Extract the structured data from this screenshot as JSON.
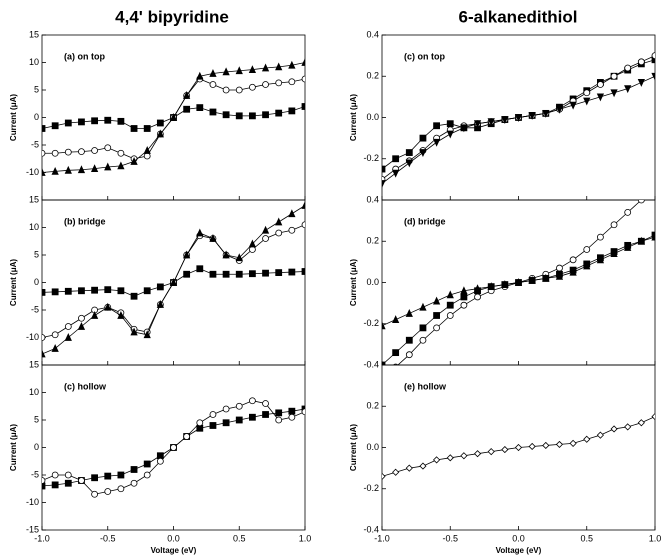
{
  "columns": [
    "4,4' bipyridine",
    "6-alkanedithiol"
  ],
  "chart_data": [
    {
      "type": "line",
      "title": "(a)  on top",
      "ylabel": "Current (μA)",
      "x": [
        -1.0,
        -0.9,
        -0.8,
        -0.7,
        -0.6,
        -0.5,
        -0.4,
        -0.3,
        -0.2,
        -0.1,
        0,
        0.1,
        0.2,
        0.3,
        0.4,
        0.5,
        0.6,
        0.7,
        0.8,
        0.9,
        1.0
      ],
      "xlim": [
        -1,
        1
      ],
      "xticks": [
        -1,
        -0.5,
        0,
        0.5,
        1
      ],
      "ylim": [
        -15,
        15
      ],
      "yticks": [
        15,
        10,
        5,
        0,
        -5,
        -10
      ],
      "series": [
        {
          "color": "#000000",
          "marker": "square",
          "values": [
            -2,
            -1.5,
            -1,
            -0.8,
            -0.6,
            -0.5,
            -0.7,
            -2,
            -2,
            -1,
            0,
            1.5,
            1.8,
            1,
            0.5,
            0.3,
            0.3,
            0.5,
            0.8,
            1.2,
            2
          ]
        },
        {
          "color": "#000000",
          "marker": "circle-open",
          "values": [
            -6.5,
            -6.5,
            -6.3,
            -6.2,
            -6,
            -5.5,
            -6.5,
            -7.5,
            -7,
            -3,
            0,
            4,
            7,
            6,
            5,
            5,
            5.5,
            6,
            6.3,
            6.5,
            7
          ]
        },
        {
          "color": "#000000",
          "marker": "triangle",
          "values": [
            -10,
            -9.8,
            -9.6,
            -9.5,
            -9.3,
            -9,
            -8.8,
            -8,
            -6,
            -3,
            0,
            4,
            7.5,
            8,
            8.3,
            8.5,
            8.7,
            9,
            9.2,
            9.5,
            10
          ]
        }
      ]
    },
    {
      "type": "line",
      "title": "(b)  bridge",
      "ylabel": "Current (μA)",
      "x": [
        -1.0,
        -0.9,
        -0.8,
        -0.7,
        -0.6,
        -0.5,
        -0.4,
        -0.3,
        -0.2,
        -0.1,
        0,
        0.1,
        0.2,
        0.3,
        0.4,
        0.5,
        0.6,
        0.7,
        0.8,
        0.9,
        1.0
      ],
      "xlim": [
        -1,
        1
      ],
      "xticks": [
        -1,
        -0.5,
        0,
        0.5,
        1
      ],
      "ylim": [
        -15,
        15
      ],
      "yticks": [
        15,
        10,
        5,
        0,
        -5,
        -10
      ],
      "series": [
        {
          "color": "#000000",
          "marker": "square",
          "values": [
            -1.8,
            -1.7,
            -1.6,
            -1.5,
            -1.4,
            -1.3,
            -1.5,
            -2.5,
            -1.5,
            -0.8,
            0,
            1.5,
            2.5,
            1.5,
            1.5,
            1.5,
            1.6,
            1.7,
            1.8,
            1.9,
            2
          ]
        },
        {
          "color": "#000000",
          "marker": "circle-open",
          "values": [
            -10,
            -9.5,
            -8,
            -6.5,
            -5,
            -4.5,
            -5.5,
            -8.5,
            -9,
            -4,
            0,
            5,
            8.5,
            8,
            5,
            4,
            6,
            8,
            9,
            9.5,
            10.5
          ]
        },
        {
          "color": "#000000",
          "marker": "triangle",
          "values": [
            -13,
            -12,
            -10,
            -8,
            -6,
            -4.5,
            -6,
            -9,
            -9.5,
            -4,
            0,
            5,
            9,
            8,
            5,
            4.5,
            7,
            9.5,
            11,
            12.5,
            14
          ]
        }
      ]
    },
    {
      "type": "line",
      "title": "(c)  hollow",
      "ylabel": "Current (μA)",
      "xlabel": "Voltage (eV)",
      "x": [
        -1.0,
        -0.9,
        -0.8,
        -0.7,
        -0.6,
        -0.5,
        -0.4,
        -0.3,
        -0.2,
        -0.1,
        0,
        0.1,
        0.2,
        0.3,
        0.4,
        0.5,
        0.6,
        0.7,
        0.8,
        0.9,
        1.0
      ],
      "xlim": [
        -1,
        1
      ],
      "xticks": [
        {
          "value": -1,
          "label": "-1.0"
        },
        -0.5,
        {
          "value": 0,
          "label": "0.0"
        },
        0.5,
        {
          "value": 1,
          "label": "1.0"
        }
      ],
      "ylim": [
        -15,
        15
      ],
      "yticks": [
        15,
        10,
        5,
        0,
        -5,
        -10,
        -15
      ],
      "series": [
        {
          "color": "#000000",
          "marker": "square",
          "values": [
            -7,
            -6.8,
            -6.5,
            -6,
            -5.5,
            -5.2,
            -5,
            -4,
            -3,
            -1.5,
            0,
            2,
            3.5,
            4,
            4.5,
            5,
            5.5,
            6,
            6.3,
            6.6,
            7
          ]
        },
        {
          "color": "#000000",
          "marker": "circle-open",
          "values": [
            -6,
            -5,
            -5,
            -6,
            -8.5,
            -8,
            -7.5,
            -6.5,
            -5,
            -2.5,
            0,
            2,
            4.5,
            6,
            7,
            7.5,
            8.5,
            8,
            5,
            5.5,
            6.5
          ]
        }
      ]
    },
    {
      "type": "line",
      "title": "(c)  on top",
      "ylabel": "Current (μA)",
      "x": [
        -1.0,
        -0.9,
        -0.8,
        -0.7,
        -0.6,
        -0.5,
        -0.4,
        -0.3,
        -0.2,
        -0.1,
        0,
        0.1,
        0.2,
        0.3,
        0.4,
        0.5,
        0.6,
        0.7,
        0.8,
        0.9,
        1.0
      ],
      "xlim": [
        -1,
        1
      ],
      "xticks": [
        -1,
        -0.5,
        0,
        0.5,
        1
      ],
      "ylim": [
        -0.4,
        0.4
      ],
      "yticks": [
        0.4,
        0.2,
        {
          "value": 0,
          "label": "0.0"
        },
        -0.2
      ],
      "series": [
        {
          "color": "#000000",
          "marker": "square",
          "values": [
            -0.25,
            -0.2,
            -0.17,
            -0.1,
            -0.04,
            -0.03,
            -0.05,
            -0.05,
            -0.03,
            -0.01,
            0,
            0.01,
            0.02,
            0.05,
            0.09,
            0.13,
            0.17,
            0.2,
            0.23,
            0.26,
            0.28
          ]
        },
        {
          "color": "#000000",
          "marker": "circle-open",
          "values": [
            -0.3,
            -0.25,
            -0.21,
            -0.16,
            -0.1,
            -0.06,
            -0.04,
            -0.03,
            -0.02,
            -0.01,
            0,
            0.01,
            0.02,
            0.04,
            0.08,
            0.12,
            0.16,
            0.2,
            0.24,
            0.27,
            0.3
          ]
        },
        {
          "color": "#000000",
          "marker": "triangle-down",
          "values": [
            -0.32,
            -0.27,
            -0.22,
            -0.17,
            -0.12,
            -0.08,
            -0.05,
            -0.03,
            -0.02,
            -0.01,
            0,
            0.01,
            0.02,
            0.04,
            0.06,
            0.08,
            0.1,
            0.12,
            0.14,
            0.17,
            0.2
          ]
        }
      ]
    },
    {
      "type": "line",
      "title": "(d)  bridge",
      "ylabel": "Current (μA)",
      "x": [
        -1.0,
        -0.9,
        -0.8,
        -0.7,
        -0.6,
        -0.5,
        -0.4,
        -0.3,
        -0.2,
        -0.1,
        0,
        0.1,
        0.2,
        0.3,
        0.4,
        0.5,
        0.6,
        0.7,
        0.8,
        0.9,
        1.0
      ],
      "xlim": [
        -1,
        1
      ],
      "xticks": [
        -1,
        -0.5,
        0,
        0.5,
        1
      ],
      "ylim": [
        -0.4,
        0.4
      ],
      "yticks": [
        0.4,
        0.2,
        {
          "value": 0,
          "label": "0.0"
        },
        -0.2,
        -0.4
      ],
      "series": [
        {
          "color": "#000000",
          "marker": "circle-open",
          "values": [
            -0.47,
            -0.41,
            -0.35,
            -0.28,
            -0.22,
            -0.16,
            -0.11,
            -0.07,
            -0.04,
            -0.02,
            0,
            0.02,
            0.04,
            0.07,
            0.11,
            0.16,
            0.22,
            0.28,
            0.34,
            0.4,
            0.46
          ]
        },
        {
          "color": "#000000",
          "marker": "square",
          "values": [
            -0.4,
            -0.34,
            -0.28,
            -0.22,
            -0.16,
            -0.11,
            -0.07,
            -0.04,
            -0.02,
            -0.01,
            0,
            0.01,
            0.02,
            0.04,
            0.06,
            0.09,
            0.12,
            0.15,
            0.18,
            0.2,
            0.23
          ]
        },
        {
          "color": "#000000",
          "marker": "triangle",
          "values": [
            -0.21,
            -0.18,
            -0.15,
            -0.12,
            -0.09,
            -0.06,
            -0.04,
            -0.03,
            -0.02,
            -0.01,
            0,
            0.01,
            0.02,
            0.03,
            0.05,
            0.08,
            0.11,
            0.14,
            0.17,
            0.2,
            0.22
          ]
        }
      ]
    },
    {
      "type": "line",
      "title": "(e)  hollow",
      "ylabel": "Current (μA)",
      "xlabel": "Voltage (eV)",
      "x": [
        -1.0,
        -0.9,
        -0.8,
        -0.7,
        -0.6,
        -0.5,
        -0.4,
        -0.3,
        -0.2,
        -0.1,
        0,
        0.1,
        0.2,
        0.3,
        0.4,
        0.5,
        0.6,
        0.7,
        0.8,
        0.9,
        1.0
      ],
      "xlim": [
        -1,
        1
      ],
      "xticks": [
        {
          "value": -1,
          "label": "-1.0"
        },
        -0.5,
        {
          "value": 0,
          "label": "0.0"
        },
        0.5,
        {
          "value": 1,
          "label": "1.0"
        }
      ],
      "ylim": [
        -0.4,
        0.4
      ],
      "yticks": [
        0.2,
        {
          "value": 0,
          "label": "0.0"
        },
        -0.2,
        -0.4
      ],
      "series": [
        {
          "color": "#000000",
          "marker": "diamond-open",
          "values": [
            -0.14,
            -0.12,
            -0.1,
            -0.09,
            -0.06,
            -0.05,
            -0.04,
            -0.03,
            -0.02,
            -0.01,
            0,
            0.005,
            0.01,
            0.015,
            0.02,
            0.04,
            0.06,
            0.09,
            0.1,
            0.12,
            0.15
          ]
        }
      ]
    }
  ]
}
